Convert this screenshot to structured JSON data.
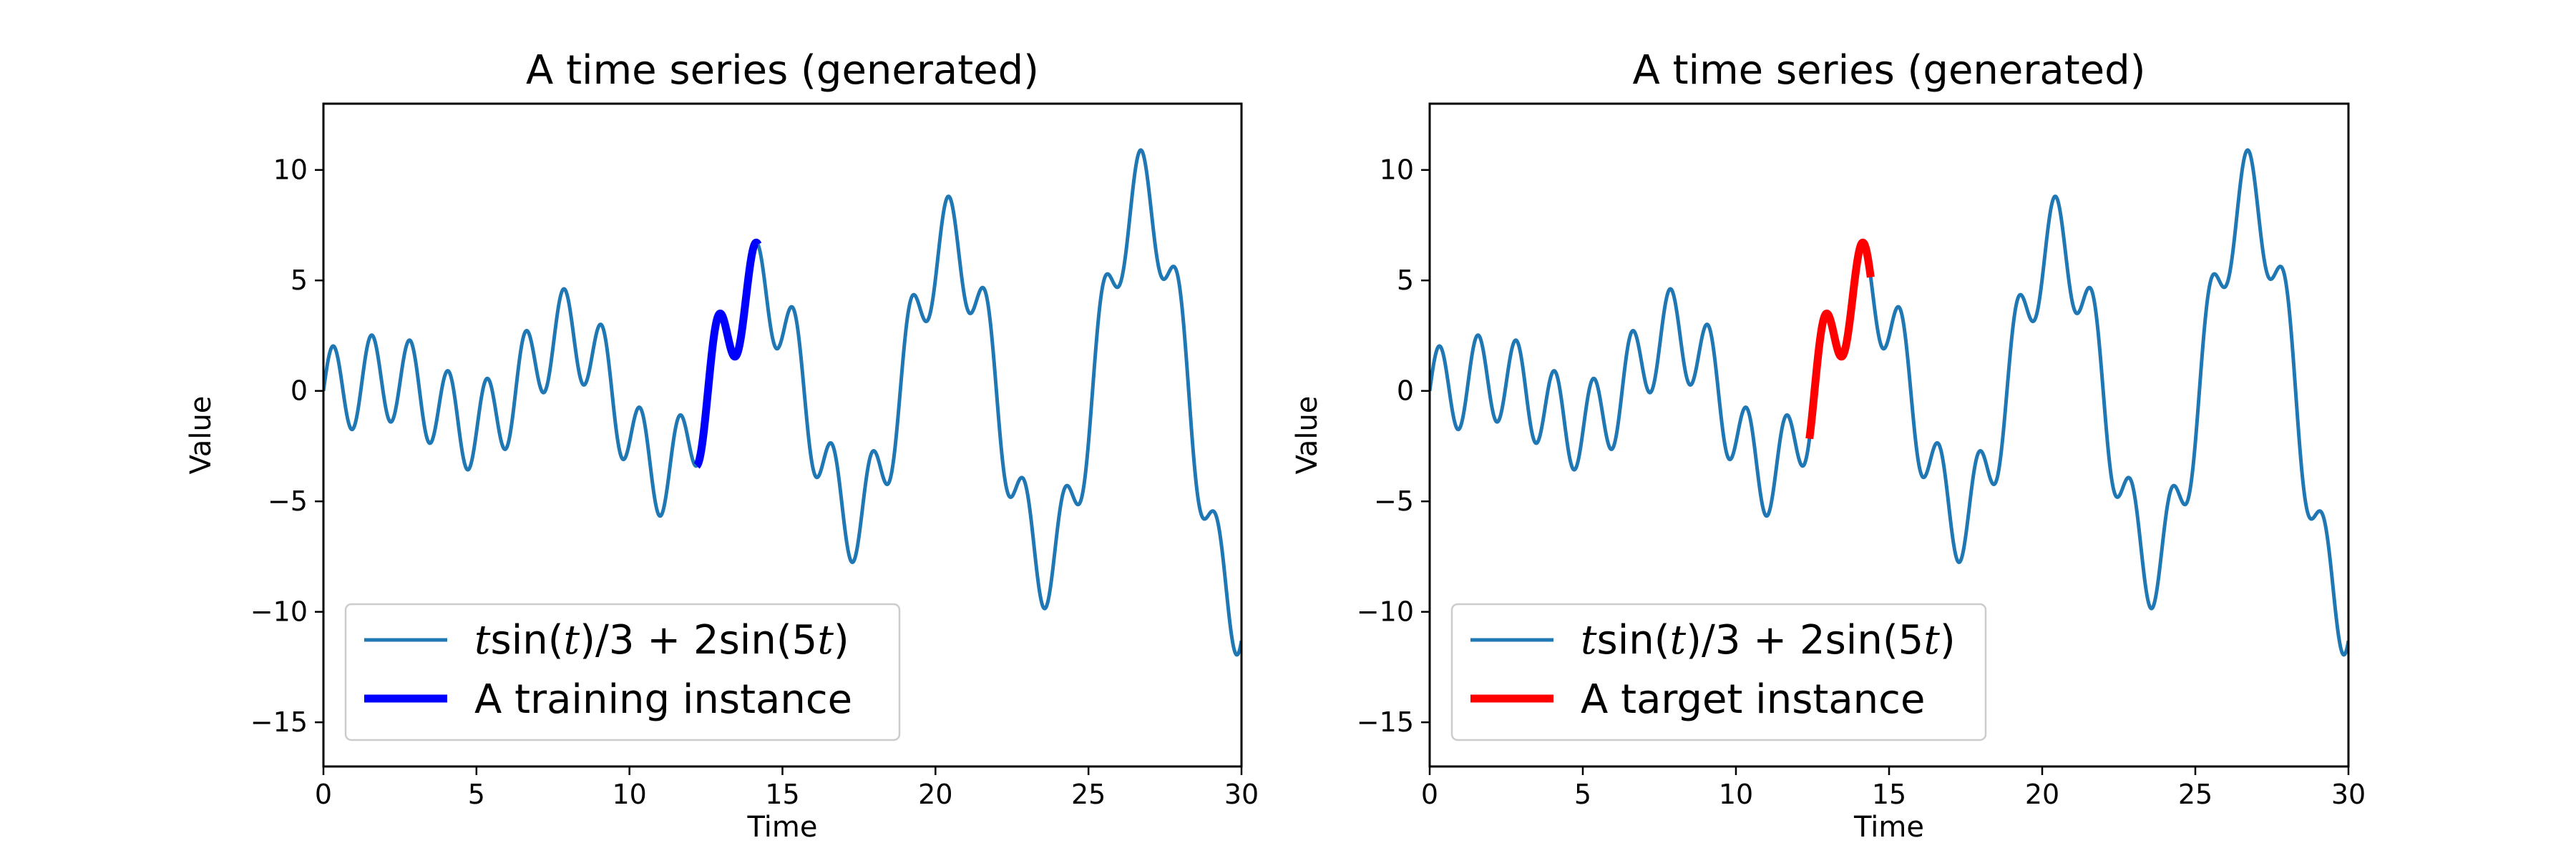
{
  "colors": {
    "series": "#1f77b4",
    "training": "#0000ff",
    "target": "#ff0000"
  },
  "chart_data": [
    {
      "type": "line",
      "title": "A time series (generated)",
      "xlabel": "Time",
      "ylabel": "Value",
      "xlim": [
        0,
        30
      ],
      "ylim": [
        -17,
        13
      ],
      "xticks": [
        0,
        5,
        10,
        15,
        20,
        25,
        30
      ],
      "xtick_labels": [
        "0",
        "5",
        "10",
        "15",
        "20",
        "25",
        "30"
      ],
      "yticks": [
        -15,
        -10,
        -5,
        0,
        5,
        10
      ],
      "ytick_labels": [
        "−15",
        "−10",
        "−5",
        "0",
        "5",
        "10"
      ],
      "grid": false,
      "legend_position": "lower-left",
      "series": [
        {
          "name": "t sin(t)/3 + 2 sin(5t)",
          "role": "full",
          "color": "#1f77b4",
          "function": "t*sin(t)/3 + 2*sin(5*t)",
          "x_range": [
            0,
            30
          ]
        },
        {
          "name": "A training instance",
          "role": "instance",
          "color": "#0000ff",
          "function": "t*sin(t)/3 + 2*sin(5*t)",
          "x_range": [
            12.2,
            14.2
          ]
        }
      ],
      "legend": [
        {
          "label": "A training instance",
          "color": "#0000ff"
        }
      ]
    },
    {
      "type": "line",
      "title": "A time series (generated)",
      "xlabel": "Time",
      "ylabel": "Value",
      "xlim": [
        0,
        30
      ],
      "ylim": [
        -17,
        13
      ],
      "xticks": [
        0,
        5,
        10,
        15,
        20,
        25,
        30
      ],
      "xtick_labels": [
        "0",
        "5",
        "10",
        "15",
        "20",
        "25",
        "30"
      ],
      "yticks": [
        -15,
        -10,
        -5,
        0,
        5,
        10
      ],
      "ytick_labels": [
        "−15",
        "−10",
        "−5",
        "0",
        "5",
        "10"
      ],
      "grid": false,
      "legend_position": "lower-left",
      "series": [
        {
          "name": "t sin(t)/3 + 2 sin(5t)",
          "role": "full",
          "color": "#1f77b4",
          "function": "t*sin(t)/3 + 2*sin(5*t)",
          "x_range": [
            0,
            30
          ]
        },
        {
          "name": "A target instance",
          "role": "instance",
          "color": "#ff0000",
          "function": "t*sin(t)/3 + 2*sin(5*t)",
          "x_range": [
            12.4,
            14.4
          ]
        }
      ],
      "legend": [
        {
          "label": "A target instance",
          "color": "#ff0000"
        }
      ]
    }
  ]
}
